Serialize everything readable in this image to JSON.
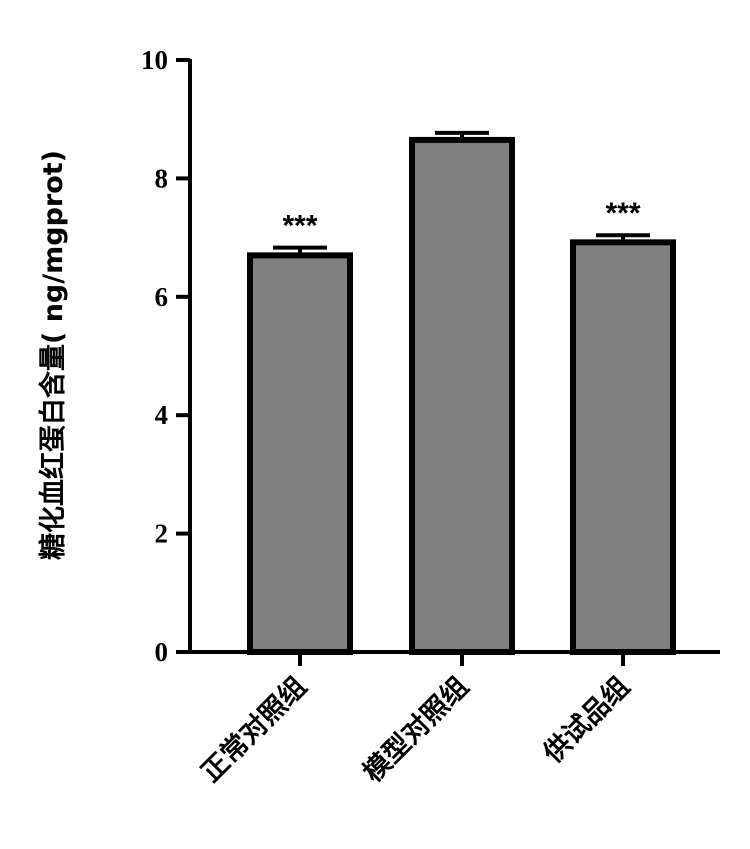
{
  "chart_data": {
    "type": "bar",
    "categories": [
      "正常对照组",
      "模型对照组",
      "供试品组"
    ],
    "values": [
      6.7,
      8.65,
      6.92
    ],
    "errors": [
      0.13,
      0.12,
      0.12
    ],
    "significance": [
      "***",
      "",
      "***"
    ],
    "ylabel": "糖化血红蛋白含量( ng/mgprot)",
    "xlabel": "",
    "ylim": [
      0,
      10
    ],
    "yticks": [
      0,
      2,
      4,
      6,
      8,
      10
    ],
    "bar_color": "#808080",
    "edge_color": "#000000"
  }
}
